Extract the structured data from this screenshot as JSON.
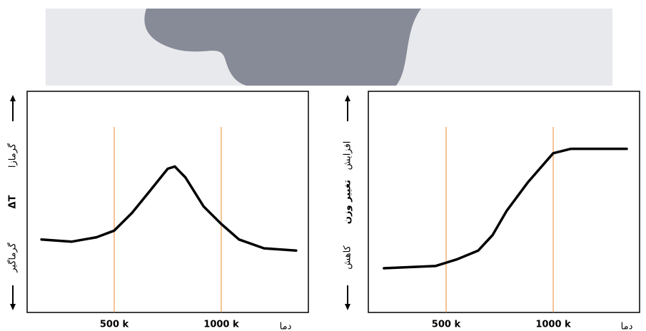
{
  "chart_data": [
    {
      "type": "line",
      "x_label": "دما",
      "y_label": "ΔT",
      "y_top": "گرمازا",
      "y_bottom": "گرماگیر",
      "x": [
        160,
        300,
        417,
        500,
        583,
        667,
        750,
        783,
        833,
        917,
        1000,
        1083,
        1200,
        1350
      ],
      "values": [
        33,
        32,
        34,
        37,
        45,
        55,
        65,
        66,
        61,
        48,
        40,
        33,
        29,
        28
      ],
      "color": "#000000",
      "grid_color": "#e8892f",
      "xlim": [
        93,
        1407
      ],
      "ylim": [
        0,
        100
      ],
      "xticks": [
        {
          "value": 500,
          "label": "500 k"
        },
        {
          "value": 1000,
          "label": "1000 k"
        }
      ]
    },
    {
      "type": "line",
      "x_label": "دما",
      "y_label": "تغییر وزن",
      "y_top": "افزایش",
      "y_bottom": "کاهش",
      "x": [
        210,
        450,
        550,
        650,
        717,
        783,
        883,
        1000,
        1083,
        1343
      ],
      "values": [
        20,
        21,
        24,
        28,
        35,
        46,
        59,
        72,
        74,
        74
      ],
      "color": "#000000",
      "grid_color": "#e8892f",
      "xlim": [
        137,
        1403
      ],
      "ylim": [
        0,
        100
      ],
      "xticks": [
        {
          "value": 500,
          "label": "500 k"
        },
        {
          "value": 1000,
          "label": "1000 k"
        }
      ]
    }
  ]
}
